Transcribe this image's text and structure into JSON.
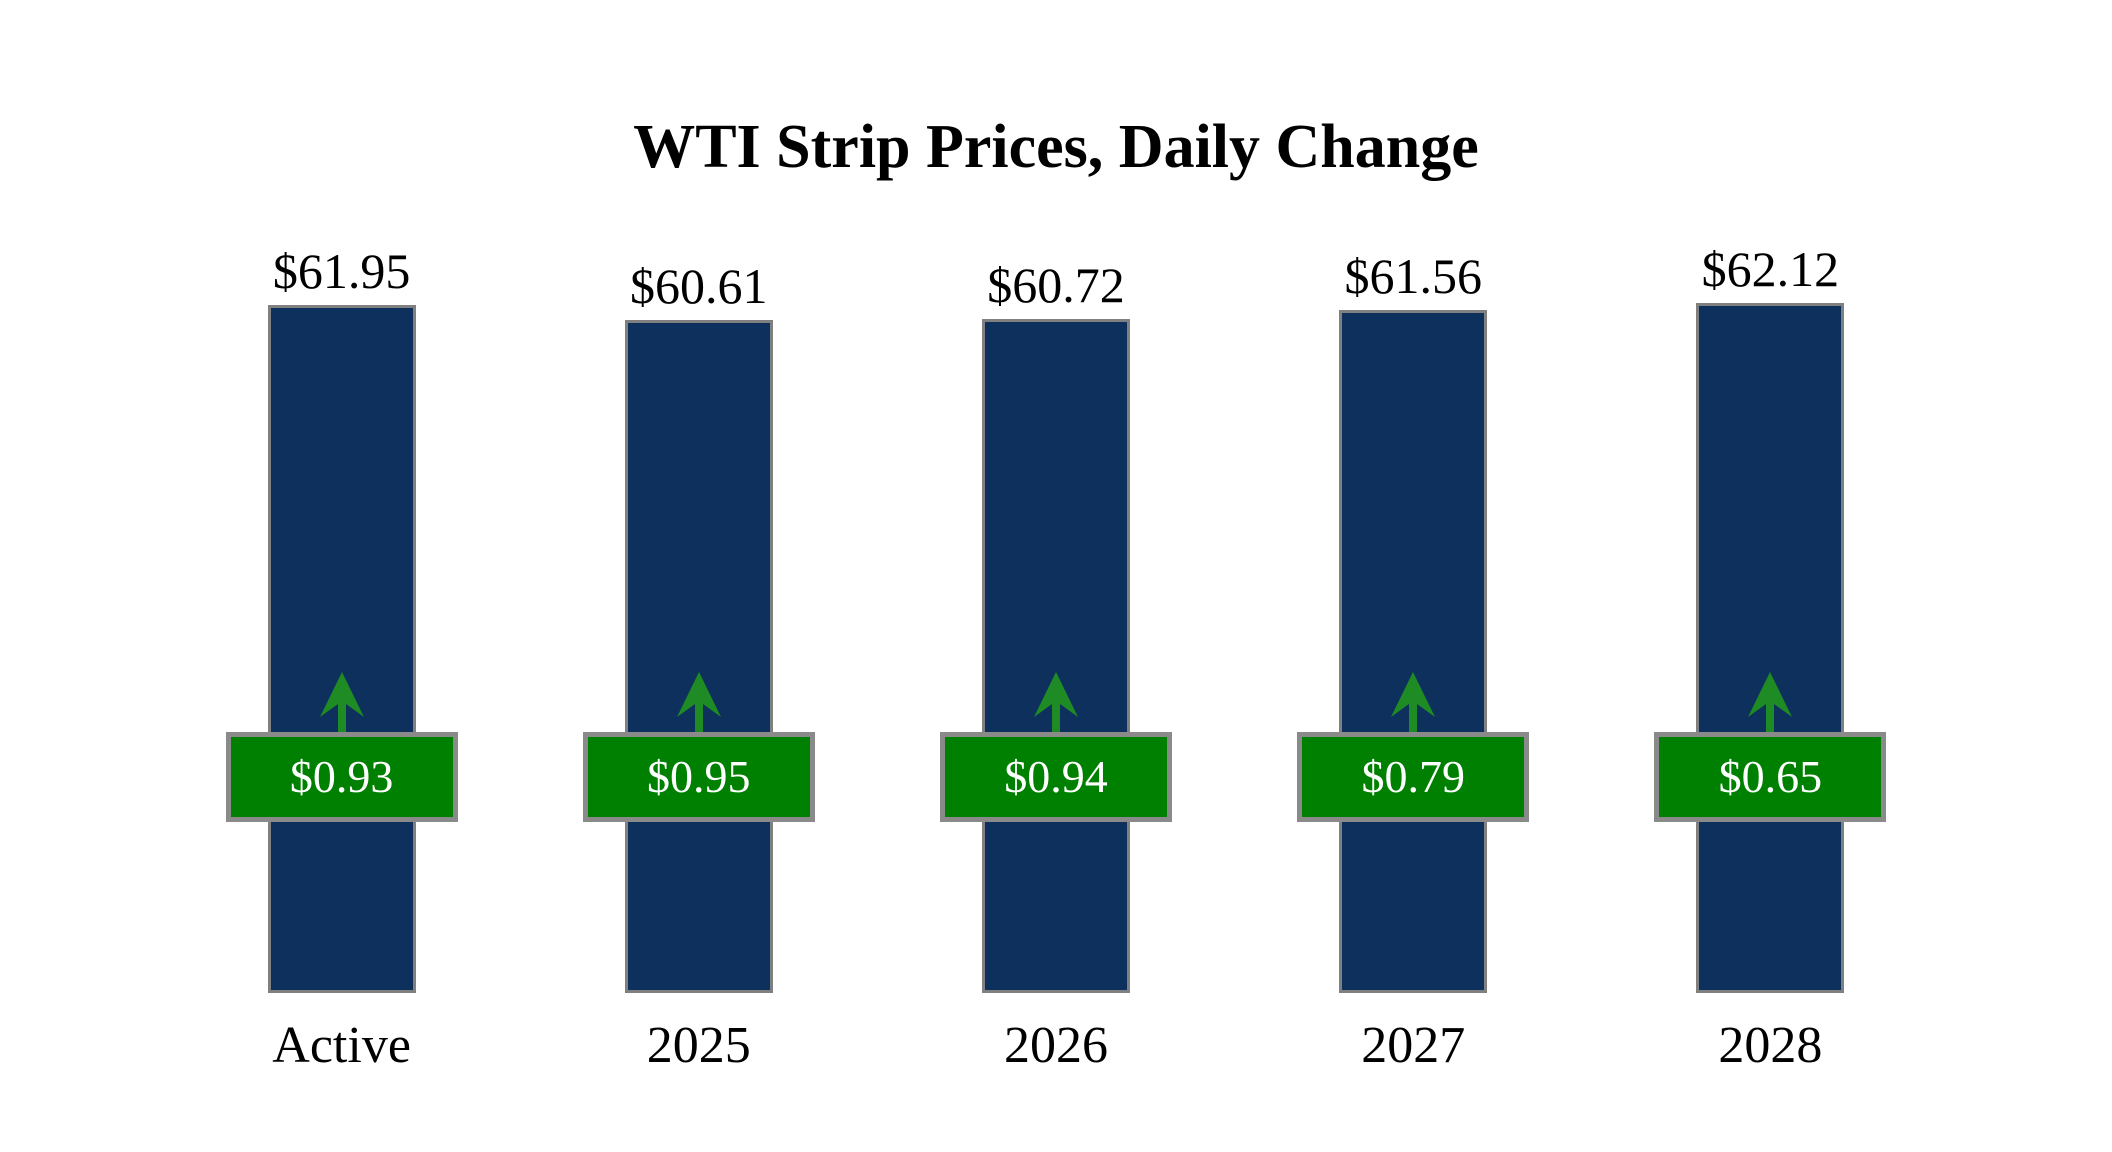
{
  "title": "WTI Strip Prices, Daily Change",
  "colors": {
    "bar-fill": "#0d305c",
    "bar-border": "#808080",
    "badge-fill": "#008000",
    "badge-border": "#8a8a8a",
    "arrow-green": "#1f8b24",
    "text-color": "#000000",
    "badge-text": "#ffffff",
    "background": "#ffffff"
  },
  "chart_data": {
    "type": "bar",
    "title": "WTI Strip Prices, Daily Change",
    "categories": [
      "Active",
      "2025",
      "2026",
      "2027",
      "2028"
    ],
    "series": [
      {
        "name": "Strip Price",
        "values": [
          61.95,
          60.61,
          60.72,
          61.56,
          62.12
        ]
      },
      {
        "name": "Daily Change",
        "values": [
          0.93,
          0.95,
          0.94,
          0.79,
          0.65
        ]
      }
    ],
    "ylim": [
      0,
      62.12
    ],
    "grid": false,
    "legend": false,
    "annotations": "each bar topped with price label; green badge with daily change and up arrow overlaid on bar",
    "bars": [
      {
        "category": "Active",
        "price": 61.95,
        "price_label": "$61.95",
        "change": 0.93,
        "change_label": "$0.93",
        "direction": "up"
      },
      {
        "category": "2025",
        "price": 60.61,
        "price_label": "$60.61",
        "change": 0.95,
        "change_label": "$0.95",
        "direction": "up"
      },
      {
        "category": "2026",
        "price": 60.72,
        "price_label": "$60.72",
        "change": 0.94,
        "change_label": "$0.94",
        "direction": "up"
      },
      {
        "category": "2027",
        "price": 61.56,
        "price_label": "$61.56",
        "change": 0.79,
        "change_label": "$0.79",
        "direction": "up"
      },
      {
        "category": "2028",
        "price": 62.12,
        "price_label": "$62.12",
        "change": 0.65,
        "change_label": "$0.65",
        "direction": "up"
      }
    ]
  }
}
